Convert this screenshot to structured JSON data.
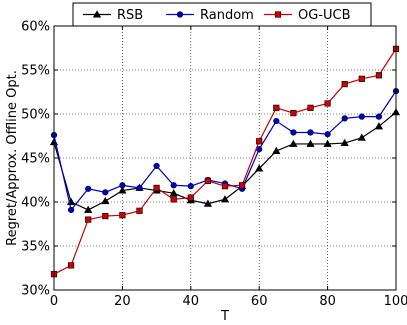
{
  "chart_data": {
    "type": "line",
    "xlabel": "T",
    "ylabel": "Regret/Approx. Offline Opt.",
    "xlim": [
      0,
      100
    ],
    "ylim": [
      30,
      60
    ],
    "x_ticks": [
      0,
      20,
      40,
      60,
      80,
      100
    ],
    "y_ticks": [
      30,
      35,
      40,
      45,
      50,
      55,
      60
    ],
    "y_tick_labels": [
      "30%",
      "35%",
      "40%",
      "45%",
      "50%",
      "55%",
      "60%"
    ],
    "x": [
      0,
      5,
      10,
      15,
      20,
      25,
      30,
      35,
      40,
      45,
      50,
      55,
      60,
      65,
      70,
      75,
      80,
      85,
      90,
      95,
      100
    ],
    "legend_position": "top-center",
    "series": [
      {
        "name": "RSB",
        "color": "#000000",
        "marker": "triangle",
        "values": [
          46.8,
          40.0,
          39.1,
          40.1,
          41.3,
          41.6,
          41.3,
          41.0,
          40.2,
          39.8,
          40.3,
          41.8,
          43.8,
          45.8,
          46.6,
          46.6,
          46.6,
          46.7,
          47.3,
          48.6,
          50.2
        ]
      },
      {
        "name": "Random",
        "color": "#0000cc",
        "marker": "circle",
        "values": [
          47.6,
          39.1,
          41.5,
          41.1,
          41.9,
          41.6,
          44.1,
          41.9,
          41.8,
          42.5,
          42.1,
          41.5,
          46.0,
          49.2,
          47.9,
          47.9,
          47.7,
          49.5,
          49.7,
          49.7,
          52.6
        ]
      },
      {
        "name": "OG-UCB",
        "color": "#cc0000",
        "marker": "square",
        "values": [
          31.8,
          32.8,
          38.0,
          38.4,
          38.5,
          39.0,
          41.6,
          40.3,
          40.5,
          42.4,
          41.8,
          41.9,
          46.9,
          50.7,
          50.1,
          50.7,
          51.2,
          53.4,
          54.0,
          54.4,
          57.4
        ]
      }
    ]
  }
}
